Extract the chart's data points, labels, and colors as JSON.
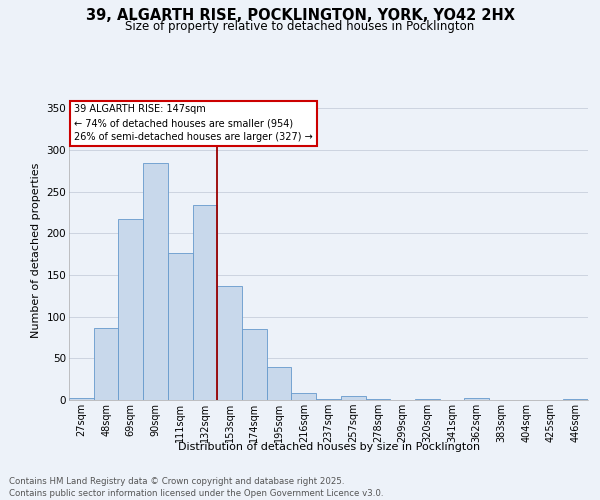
{
  "title_line1": "39, ALGARTH RISE, POCKLINGTON, YORK, YO42 2HX",
  "title_line2": "Size of property relative to detached houses in Pocklington",
  "xlabel": "Distribution of detached houses by size in Pocklington",
  "ylabel": "Number of detached properties",
  "categories": [
    "27sqm",
    "48sqm",
    "69sqm",
    "90sqm",
    "111sqm",
    "132sqm",
    "153sqm",
    "174sqm",
    "195sqm",
    "216sqm",
    "237sqm",
    "257sqm",
    "278sqm",
    "299sqm",
    "320sqm",
    "341sqm",
    "362sqm",
    "383sqm",
    "404sqm",
    "425sqm",
    "446sqm"
  ],
  "values": [
    2,
    87,
    217,
    285,
    176,
    234,
    137,
    85,
    40,
    9,
    1,
    5,
    1,
    0,
    1,
    0,
    3,
    0,
    0,
    0,
    1
  ],
  "bar_color": "#c8d8eb",
  "bar_edgecolor": "#6699cc",
  "bg_color": "#edf2f9",
  "grid_color": "#d8dde8",
  "vline_x": 5.5,
  "vline_color": "#990000",
  "annotation_text": "39 ALGARTH RISE: 147sqm\n← 74% of detached houses are smaller (954)\n26% of semi-detached houses are larger (327) →",
  "annotation_box_facecolor": "#ffffff",
  "annotation_box_edgecolor": "#cc0000",
  "ylim": [
    0,
    360
  ],
  "yticks": [
    0,
    50,
    100,
    150,
    200,
    250,
    300,
    350
  ],
  "footer_line1": "Contains HM Land Registry data © Crown copyright and database right 2025.",
  "footer_line2": "Contains public sector information licensed under the Open Government Licence v3.0."
}
